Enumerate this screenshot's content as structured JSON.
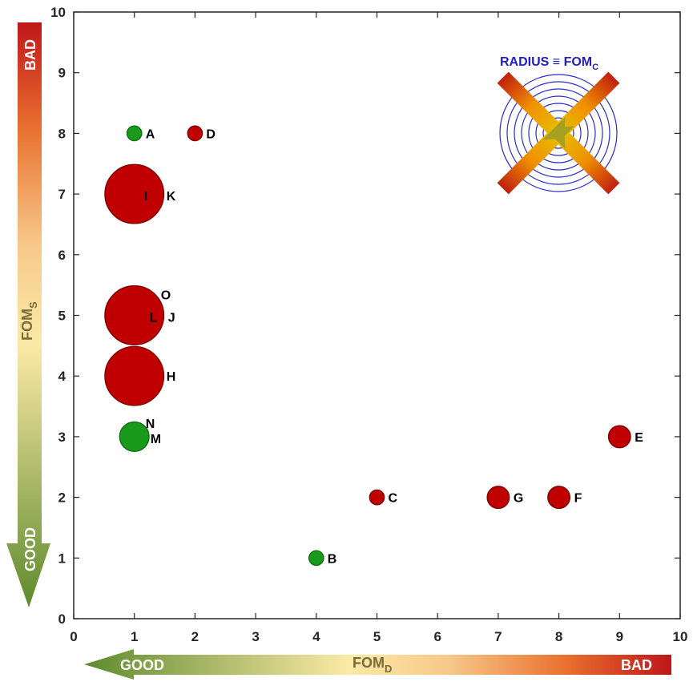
{
  "chart_data": {
    "type": "scatter",
    "xlim": [
      0,
      10
    ],
    "ylim": [
      0,
      10
    ],
    "xticks": [
      "0",
      "1",
      "2",
      "3",
      "4",
      "5",
      "6",
      "7",
      "8",
      "9",
      "10"
    ],
    "yticks": [
      "0",
      "1",
      "2",
      "3",
      "4",
      "5",
      "6",
      "7",
      "8",
      "9",
      "10"
    ],
    "xlabel": "FOM",
    "xlabel_sub": "D",
    "ylabel": "FOM",
    "ylabel_sub": "S",
    "x_arrow": {
      "good": "GOOD",
      "bad": "BAD"
    },
    "y_arrow": {
      "good": "GOOD",
      "bad": "BAD"
    },
    "legend": {
      "text": "RADIUS ≡ FOM",
      "sub": "C",
      "placement": "top-right"
    },
    "grid": false,
    "colors": {
      "good": "#1a9a1a",
      "bad": "#c00000",
      "legend": "#1f1fbf"
    },
    "points": [
      {
        "label": "A",
        "x": 1,
        "y": 8,
        "size": 1,
        "status": "good"
      },
      {
        "label": "B",
        "x": 4,
        "y": 1,
        "size": 1,
        "status": "good"
      },
      {
        "label": "C",
        "x": 5,
        "y": 2,
        "size": 1,
        "status": "bad"
      },
      {
        "label": "D",
        "x": 2,
        "y": 8,
        "size": 1,
        "status": "bad"
      },
      {
        "label": "E",
        "x": 9,
        "y": 3,
        "size": 1.5,
        "status": "bad"
      },
      {
        "label": "F",
        "x": 8,
        "y": 2,
        "size": 1.5,
        "status": "bad"
      },
      {
        "label": "G",
        "x": 7,
        "y": 2,
        "size": 1.5,
        "status": "bad"
      },
      {
        "label": "H",
        "x": 1,
        "y": 4,
        "size": 4,
        "status": "bad"
      },
      {
        "label": "I",
        "x": 1,
        "y": 7,
        "size": 3.3,
        "status": "bad"
      },
      {
        "label": "K",
        "x": 1,
        "y": 7,
        "size": 4,
        "status": "bad"
      },
      {
        "label": "L",
        "x": 1,
        "y": 5,
        "size": 4,
        "status": "bad"
      },
      {
        "label": "J",
        "x": 1,
        "y": 5,
        "size": 4,
        "status": "bad"
      },
      {
        "label": "O",
        "x": 1,
        "y": 5,
        "size": 4,
        "status": "bad"
      },
      {
        "label": "M",
        "x": 1,
        "y": 3,
        "size": 2,
        "status": "good"
      },
      {
        "label": "N",
        "x": 1,
        "y": 3,
        "size": 2,
        "status": "good"
      }
    ]
  }
}
